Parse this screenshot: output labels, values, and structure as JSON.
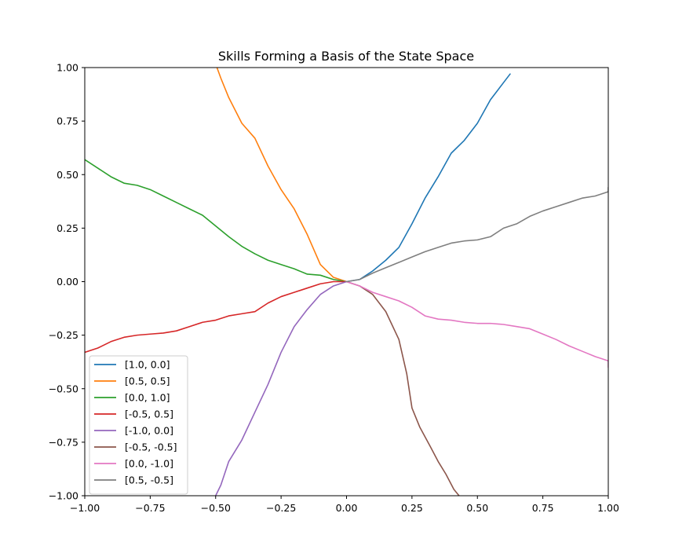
{
  "chart_data": {
    "type": "line",
    "title": "Skills Forming a Basis of the State Space",
    "xlabel": "",
    "ylabel": "",
    "xlim": [
      -1.0,
      1.0
    ],
    "ylim": [
      -1.0,
      1.0
    ],
    "xticks": [
      "−1.00",
      "−0.75",
      "−0.50",
      "−0.25",
      "0.00",
      "0.25",
      "0.50",
      "0.75",
      "1.00"
    ],
    "yticks": [
      "−1.00",
      "−0.75",
      "−0.50",
      "−0.25",
      "0.00",
      "0.25",
      "0.50",
      "0.75",
      "1.00"
    ],
    "xtick_values": [
      -1.0,
      -0.75,
      -0.5,
      -0.25,
      0.0,
      0.25,
      0.5,
      0.75,
      1.0
    ],
    "ytick_values": [
      -1.0,
      -0.75,
      -0.5,
      -0.25,
      0.0,
      0.25,
      0.5,
      0.75,
      1.0
    ],
    "grid": false,
    "legend_position": "lower-left",
    "series": [
      {
        "name": "[1.0, 0.0]",
        "color": "#1f77b4",
        "points": [
          [
            0.0,
            0.0
          ],
          [
            0.05,
            0.01
          ],
          [
            0.1,
            0.05
          ],
          [
            0.15,
            0.1
          ],
          [
            0.2,
            0.16
          ],
          [
            0.25,
            0.27
          ],
          [
            0.3,
            0.39
          ],
          [
            0.35,
            0.49
          ],
          [
            0.4,
            0.6
          ],
          [
            0.45,
            0.66
          ],
          [
            0.5,
            0.74
          ],
          [
            0.55,
            0.85
          ],
          [
            0.6,
            0.93
          ],
          [
            0.625,
            0.97
          ]
        ]
      },
      {
        "name": "[0.5, 0.5]",
        "color": "#ff7f0e",
        "points": [
          [
            0.0,
            0.0
          ],
          [
            -0.05,
            0.02
          ],
          [
            -0.1,
            0.08
          ],
          [
            -0.15,
            0.22
          ],
          [
            -0.2,
            0.34
          ],
          [
            -0.25,
            0.43
          ],
          [
            -0.3,
            0.54
          ],
          [
            -0.35,
            0.67
          ],
          [
            -0.4,
            0.74
          ],
          [
            -0.45,
            0.86
          ],
          [
            -0.48,
            0.95
          ],
          [
            -0.495,
            1.0
          ]
        ]
      },
      {
        "name": "[0.0, 1.0]",
        "color": "#2ca02c",
        "points": [
          [
            0.0,
            0.0
          ],
          [
            -0.05,
            0.01
          ],
          [
            -0.1,
            0.03
          ],
          [
            -0.15,
            0.035
          ],
          [
            -0.2,
            0.06
          ],
          [
            -0.25,
            0.08
          ],
          [
            -0.3,
            0.1
          ],
          [
            -0.35,
            0.13
          ],
          [
            -0.4,
            0.165
          ],
          [
            -0.45,
            0.21
          ],
          [
            -0.5,
            0.26
          ],
          [
            -0.55,
            0.31
          ],
          [
            -0.6,
            0.34
          ],
          [
            -0.65,
            0.37
          ],
          [
            -0.7,
            0.4
          ],
          [
            -0.75,
            0.43
          ],
          [
            -0.8,
            0.45
          ],
          [
            -0.85,
            0.46
          ],
          [
            -0.9,
            0.49
          ],
          [
            -0.95,
            0.53
          ],
          [
            -1.0,
            0.57
          ]
        ]
      },
      {
        "name": "[-0.5, 0.5]",
        "color": "#d62728",
        "points": [
          [
            0.0,
            0.0
          ],
          [
            -0.05,
            0.0
          ],
          [
            -0.1,
            -0.01
          ],
          [
            -0.15,
            -0.03
          ],
          [
            -0.2,
            -0.05
          ],
          [
            -0.25,
            -0.07
          ],
          [
            -0.3,
            -0.1
          ],
          [
            -0.35,
            -0.14
          ],
          [
            -0.4,
            -0.15
          ],
          [
            -0.45,
            -0.16
          ],
          [
            -0.5,
            -0.18
          ],
          [
            -0.55,
            -0.19
          ],
          [
            -0.6,
            -0.21
          ],
          [
            -0.65,
            -0.23
          ],
          [
            -0.7,
            -0.24
          ],
          [
            -0.75,
            -0.245
          ],
          [
            -0.8,
            -0.25
          ],
          [
            -0.85,
            -0.26
          ],
          [
            -0.9,
            -0.28
          ],
          [
            -0.95,
            -0.31
          ],
          [
            -1.0,
            -0.33
          ]
        ]
      },
      {
        "name": "[-1.0, 0.0]",
        "color": "#9467bd",
        "points": [
          [
            0.0,
            0.0
          ],
          [
            -0.05,
            -0.02
          ],
          [
            -0.1,
            -0.06
          ],
          [
            -0.15,
            -0.13
          ],
          [
            -0.2,
            -0.21
          ],
          [
            -0.25,
            -0.33
          ],
          [
            -0.3,
            -0.48
          ],
          [
            -0.35,
            -0.61
          ],
          [
            -0.4,
            -0.74
          ],
          [
            -0.45,
            -0.84
          ],
          [
            -0.48,
            -0.95
          ],
          [
            -0.5,
            -1.0
          ]
        ]
      },
      {
        "name": "[-0.5, -0.5]",
        "color": "#8c564b",
        "points": [
          [
            0.0,
            0.0
          ],
          [
            0.05,
            -0.02
          ],
          [
            0.1,
            -0.06
          ],
          [
            0.15,
            -0.14
          ],
          [
            0.2,
            -0.27
          ],
          [
            0.23,
            -0.43
          ],
          [
            0.25,
            -0.59
          ],
          [
            0.28,
            -0.68
          ],
          [
            0.32,
            -0.77
          ],
          [
            0.35,
            -0.84
          ],
          [
            0.38,
            -0.9
          ],
          [
            0.41,
            -0.97
          ],
          [
            0.43,
            -1.0
          ]
        ]
      },
      {
        "name": "[0.0, -1.0]",
        "color": "#e377c2",
        "points": [
          [
            0.0,
            0.0
          ],
          [
            0.05,
            -0.02
          ],
          [
            0.1,
            -0.05
          ],
          [
            0.15,
            -0.07
          ],
          [
            0.2,
            -0.09
          ],
          [
            0.25,
            -0.12
          ],
          [
            0.3,
            -0.16
          ],
          [
            0.35,
            -0.175
          ],
          [
            0.4,
            -0.18
          ],
          [
            0.45,
            -0.19
          ],
          [
            0.5,
            -0.195
          ],
          [
            0.55,
            -0.195
          ],
          [
            0.6,
            -0.2
          ],
          [
            0.65,
            -0.21
          ],
          [
            0.7,
            -0.22
          ],
          [
            0.75,
            -0.245
          ],
          [
            0.8,
            -0.27
          ],
          [
            0.85,
            -0.3
          ],
          [
            0.9,
            -0.325
          ],
          [
            0.95,
            -0.35
          ],
          [
            1.0,
            -0.37
          ],
          [
            1.0,
            -0.4
          ]
        ]
      },
      {
        "name": "[0.5, -0.5]",
        "color": "#7f7f7f",
        "points": [
          [
            0.0,
            0.0
          ],
          [
            0.05,
            0.01
          ],
          [
            0.1,
            0.04
          ],
          [
            0.15,
            0.065
          ],
          [
            0.2,
            0.09
          ],
          [
            0.25,
            0.115
          ],
          [
            0.3,
            0.14
          ],
          [
            0.35,
            0.16
          ],
          [
            0.4,
            0.18
          ],
          [
            0.45,
            0.19
          ],
          [
            0.5,
            0.195
          ],
          [
            0.55,
            0.21
          ],
          [
            0.6,
            0.25
          ],
          [
            0.65,
            0.27
          ],
          [
            0.7,
            0.305
          ],
          [
            0.75,
            0.33
          ],
          [
            0.8,
            0.35
          ],
          [
            0.85,
            0.37
          ],
          [
            0.9,
            0.39
          ],
          [
            0.95,
            0.4
          ],
          [
            1.0,
            0.42
          ],
          [
            1.0,
            0.44
          ]
        ]
      }
    ]
  }
}
